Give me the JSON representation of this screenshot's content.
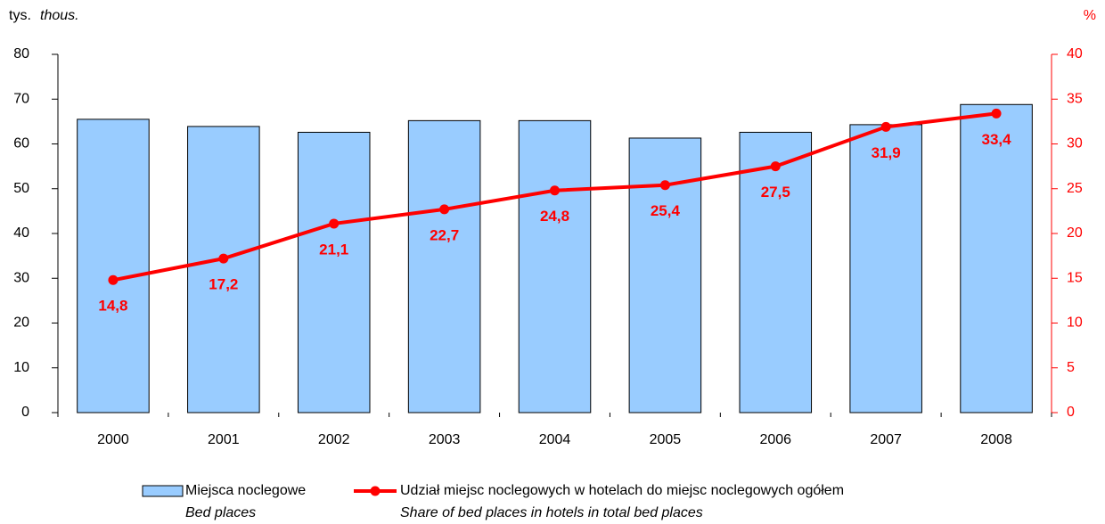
{
  "chart_data": {
    "type": "bar",
    "y_label": "tys.",
    "y_label_en": "thous.",
    "y2_label": "%",
    "categories": [
      "2000",
      "2001",
      "2002",
      "2003",
      "2004",
      "2005",
      "2006",
      "2007",
      "2008"
    ],
    "series": [
      {
        "name": "Miejsca noclegowe",
        "name_en": "Bed places",
        "type": "bar",
        "color": "#99ccff",
        "values": [
          65.5,
          63.9,
          62.6,
          65.2,
          65.2,
          61.3,
          62.6,
          64.3,
          68.8
        ]
      },
      {
        "name": "Udział miejsc noclegowych w hotelach do miejsc noclegowych ogółem",
        "name_en": "Share of bed places in hotels in total bed places",
        "type": "line",
        "axis": "y2",
        "color": "#ff0000",
        "values": [
          14.8,
          17.2,
          21.1,
          22.7,
          24.8,
          25.4,
          27.5,
          31.9,
          33.4
        ],
        "value_labels": [
          "14,8",
          "17,2",
          "21,1",
          "22,7",
          "24,8",
          "25,4",
          "27,5",
          "31,9",
          "33,4"
        ]
      }
    ],
    "ylim": [
      0,
      80
    ],
    "yticks": [
      0,
      10,
      20,
      30,
      40,
      50,
      60,
      70,
      80
    ],
    "y2lim": [
      0,
      40
    ],
    "y2ticks": [
      0,
      5,
      10,
      15,
      20,
      25,
      30,
      35,
      40
    ],
    "legend": "bottom"
  }
}
